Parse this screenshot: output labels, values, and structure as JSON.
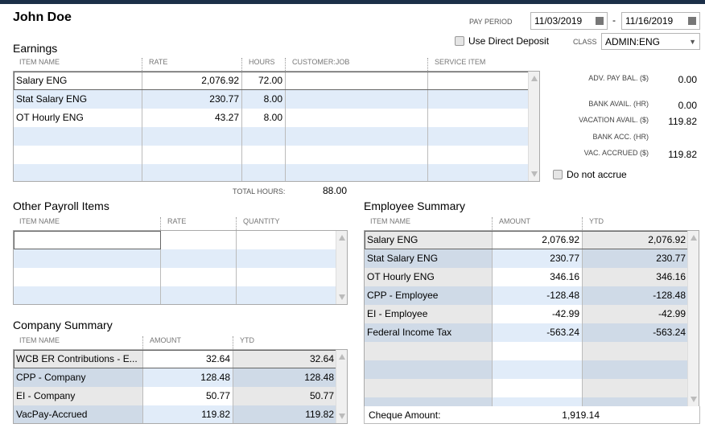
{
  "employee_name": "John Doe",
  "pay_period": {
    "label": "PAY PERIOD",
    "start": "11/03/2019",
    "separator": "-",
    "end": "11/16/2019"
  },
  "direct_deposit": {
    "label": "Use Direct Deposit",
    "checked": false
  },
  "class": {
    "label": "CLASS",
    "value": "ADMIN:ENG"
  },
  "earnings": {
    "title": "Earnings",
    "headers": [
      "ITEM NAME",
      "RATE",
      "HOURS",
      "CUSTOMER:JOB",
      "SERVICE ITEM"
    ],
    "rows": [
      [
        "Salary ENG",
        "2,076.92",
        "72.00",
        "",
        ""
      ],
      [
        "Stat Salary ENG",
        "230.77",
        "8.00",
        "",
        ""
      ],
      [
        "OT Hourly ENG",
        "43.27",
        "8.00",
        "",
        ""
      ],
      [
        "",
        "",
        "",
        "",
        ""
      ],
      [
        "",
        "",
        "",
        "",
        ""
      ],
      [
        "",
        "",
        "",
        "",
        ""
      ]
    ],
    "total_hours_label": "TOTAL HOURS:",
    "total_hours": "88.00"
  },
  "balances": [
    {
      "label": "ADV. PAY BAL. ($)",
      "value": "0.00"
    },
    {
      "label": "BANK AVAIL. (HR)",
      "value": "0.00"
    },
    {
      "label": "VACATION AVAIL. ($)",
      "value": "119.82"
    },
    {
      "label": "BANK ACC. (HR)",
      "value": ""
    },
    {
      "label": "VAC. ACCRUED ($)",
      "value": "119.82"
    }
  ],
  "do_not_accrue": {
    "label": "Do not accrue",
    "checked": false
  },
  "other_payroll": {
    "title": "Other Payroll Items",
    "headers": [
      "ITEM NAME",
      "RATE",
      "QUANTITY"
    ],
    "rows": [
      [
        "",
        "",
        ""
      ],
      [
        "",
        "",
        ""
      ],
      [
        "",
        "",
        ""
      ],
      [
        "",
        "",
        ""
      ]
    ]
  },
  "company_summary": {
    "title": "Company Summary",
    "headers": [
      "ITEM NAME",
      "AMOUNT",
      "YTD"
    ],
    "rows": [
      [
        "WCB ER Contributions - E...",
        "32.64",
        "32.64"
      ],
      [
        "CPP - Company",
        "128.48",
        "128.48"
      ],
      [
        "EI - Company",
        "50.77",
        "50.77"
      ],
      [
        "VacPay-Accrued",
        "119.82",
        "119.82"
      ]
    ]
  },
  "employee_summary": {
    "title": "Employee Summary",
    "headers": [
      "ITEM NAME",
      "AMOUNT",
      "YTD"
    ],
    "rows": [
      [
        "Salary ENG",
        "2,076.92",
        "2,076.92"
      ],
      [
        "Stat Salary ENG",
        "230.77",
        "230.77"
      ],
      [
        "OT Hourly ENG",
        "346.16",
        "346.16"
      ],
      [
        "CPP - Employee",
        "-128.48",
        "-128.48"
      ],
      [
        "EI - Employee",
        "-42.99",
        "-42.99"
      ],
      [
        "Federal Income Tax",
        "-563.24",
        "-563.24"
      ],
      [
        "",
        "",
        ""
      ],
      [
        "",
        "",
        ""
      ],
      [
        "",
        "",
        ""
      ],
      [
        "",
        "",
        ""
      ]
    ],
    "cheque_label": "Cheque Amount:",
    "cheque_amount": "1,919.14"
  }
}
